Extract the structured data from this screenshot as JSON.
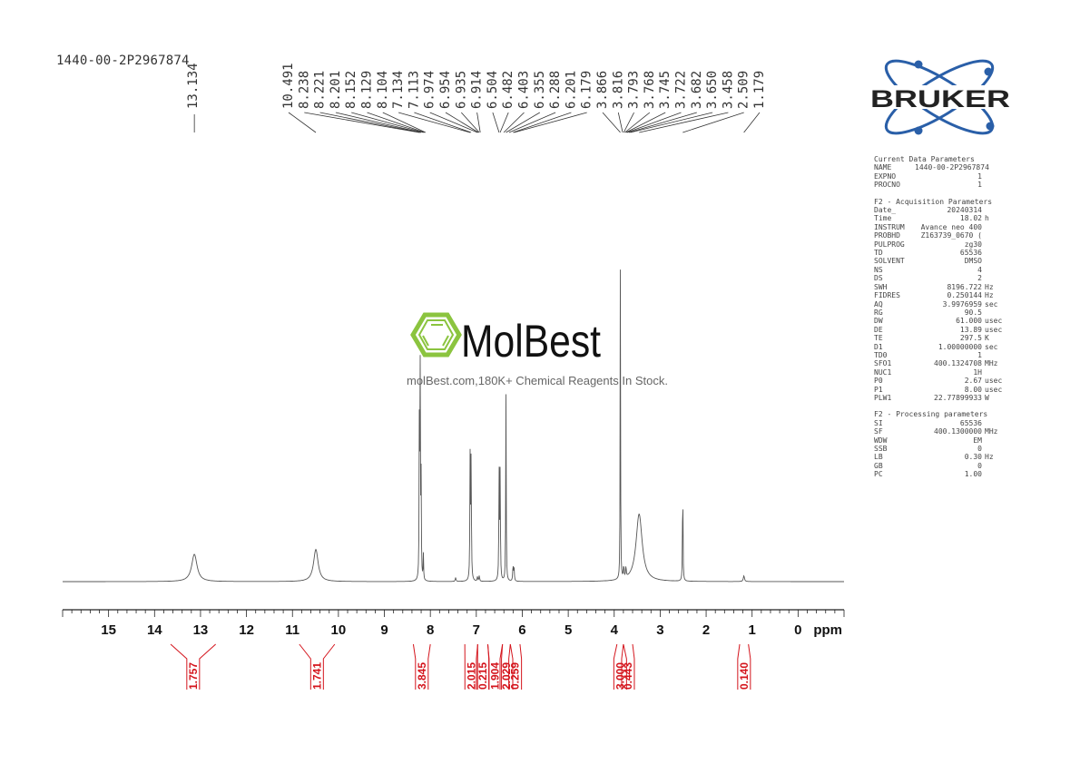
{
  "sample_id": "1440-00-2P2967874",
  "brand": {
    "name": "BRUKER",
    "colors": {
      "text": "#222222",
      "orbit": "#2a5fa8",
      "dot": "#2a5fa8"
    }
  },
  "watermark": {
    "brand": "MolBest",
    "tagline": "molBest.com,180K+ Chemical Reagents In Stock.",
    "color": "#8bc43f"
  },
  "parameters": {
    "sections": [
      {
        "title": "Current Data Parameters",
        "rows": [
          [
            "NAME",
            "1440-00-2P2967874",
            ""
          ],
          [
            "EXPNO",
            "1",
            ""
          ],
          [
            "PROCNO",
            "1",
            ""
          ]
        ]
      },
      {
        "title": "F2 - Acquisition Parameters",
        "rows": [
          [
            "Date_",
            "20240314",
            ""
          ],
          [
            "Time",
            "18.02",
            "h"
          ],
          [
            "INSTRUM",
            "Avance neo 400",
            ""
          ],
          [
            "PROBHD",
            "Z163739_0670 (",
            ""
          ],
          [
            "PULPROG",
            "zg30",
            ""
          ],
          [
            "TD",
            "65536",
            ""
          ],
          [
            "SOLVENT",
            "DMSO",
            ""
          ],
          [
            "NS",
            "4",
            ""
          ],
          [
            "DS",
            "2",
            ""
          ],
          [
            "SWH",
            "8196.722",
            "Hz"
          ],
          [
            "FIDRES",
            "0.250144",
            "Hz"
          ],
          [
            "AQ",
            "3.9976959",
            "sec"
          ],
          [
            "RG",
            "90.5",
            ""
          ],
          [
            "DW",
            "61.000",
            "usec"
          ],
          [
            "DE",
            "13.89",
            "usec"
          ],
          [
            "TE",
            "297.5",
            "K"
          ],
          [
            "D1",
            "1.00000000",
            "sec"
          ],
          [
            "TD0",
            "1",
            ""
          ],
          [
            "SFO1",
            "400.1324708",
            "MHz"
          ],
          [
            "NUC1",
            "1H",
            ""
          ],
          [
            "P0",
            "2.67",
            "usec"
          ],
          [
            "P1",
            "8.00",
            "usec"
          ],
          [
            "PLW1",
            "22.77899933",
            "W"
          ]
        ]
      },
      {
        "title": "F2 - Processing parameters",
        "rows": [
          [
            "SI",
            "65536",
            ""
          ],
          [
            "SF",
            "400.1300000",
            "MHz"
          ],
          [
            "WDW",
            "EM",
            ""
          ],
          [
            "SSB",
            "0",
            ""
          ],
          [
            "LB",
            "0.30",
            "Hz"
          ],
          [
            "GB",
            "0",
            ""
          ],
          [
            "PC",
            "1.00",
            ""
          ]
        ]
      }
    ]
  },
  "chart_data": {
    "type": "line",
    "xlabel": "ppm",
    "x_reversed": true,
    "xlim": [
      16.0,
      -1.0
    ],
    "major_ticks": [
      15,
      14,
      13,
      12,
      11,
      10,
      9,
      8,
      7,
      6,
      5,
      4,
      3,
      2,
      1,
      0
    ],
    "minor_tick_step": 0.2,
    "peak_labels": [
      "13.134",
      "10.491",
      "8.238",
      "8.221",
      "8.201",
      "8.152",
      "8.129",
      "8.104",
      "7.134",
      "7.113",
      "6.974",
      "6.954",
      "6.935",
      "6.914",
      "6.504",
      "6.482",
      "6.403",
      "6.355",
      "6.288",
      "6.201",
      "6.179",
      "3.866",
      "3.816",
      "3.793",
      "3.768",
      "3.745",
      "3.722",
      "3.682",
      "3.650",
      "3.458",
      "2.509",
      "1.179"
    ],
    "peaks": [
      {
        "ppm": 13.134,
        "height": 0.085,
        "width": 0.07
      },
      {
        "ppm": 10.491,
        "height": 0.1,
        "width": 0.06
      },
      {
        "ppm": 8.238,
        "height": 0.55,
        "width": 0.006
      },
      {
        "ppm": 8.221,
        "height": 0.62,
        "width": 0.006
      },
      {
        "ppm": 8.201,
        "height": 0.3,
        "width": 0.006
      },
      {
        "ppm": 8.152,
        "height": 0.08,
        "width": 0.006
      },
      {
        "ppm": 7.134,
        "height": 0.38,
        "width": 0.007
      },
      {
        "ppm": 7.113,
        "height": 0.38,
        "width": 0.007
      },
      {
        "ppm": 6.974,
        "height": 0.015,
        "width": 0.008
      },
      {
        "ppm": 6.935,
        "height": 0.018,
        "width": 0.008
      },
      {
        "ppm": 6.504,
        "height": 0.33,
        "width": 0.007
      },
      {
        "ppm": 6.482,
        "height": 0.33,
        "width": 0.007
      },
      {
        "ppm": 6.355,
        "height": 0.58,
        "width": 0.006
      },
      {
        "ppm": 6.201,
        "height": 0.05,
        "width": 0.008
      },
      {
        "ppm": 6.179,
        "height": 0.04,
        "width": 0.008
      },
      {
        "ppm": 7.45,
        "height": 0.012,
        "width": 0.01
      },
      {
        "ppm": 3.866,
        "height": 1.0,
        "width": 0.005
      },
      {
        "ppm": 3.793,
        "height": 0.04,
        "width": 0.008
      },
      {
        "ppm": 3.745,
        "height": 0.035,
        "width": 0.008
      },
      {
        "ppm": 3.458,
        "height": 0.21,
        "width": 0.08
      },
      {
        "ppm": 2.509,
        "height": 0.34,
        "width": 0.006
      },
      {
        "ppm": 1.179,
        "height": 0.018,
        "width": 0.015
      }
    ],
    "integrals": [
      {
        "from": 13.65,
        "to": 12.67,
        "value": "1.757"
      },
      {
        "from": 10.85,
        "to": 10.08,
        "value": "1.741"
      },
      {
        "from": 8.37,
        "to": 8.0,
        "value": "3.845"
      },
      {
        "from": 7.25,
        "to": 6.97,
        "value": "2.015"
      },
      {
        "from": 6.97,
        "to": 6.75,
        "value": "0.215"
      },
      {
        "from": 6.75,
        "to": 6.43,
        "value": "1.904"
      },
      {
        "from": 6.43,
        "to": 6.26,
        "value": "2.029"
      },
      {
        "from": 6.26,
        "to": 6.05,
        "value": "0.259"
      },
      {
        "from": 3.94,
        "to": 3.8,
        "value": "3.000"
      },
      {
        "from": 3.8,
        "to": 3.6,
        "value": "0.443"
      },
      {
        "from": 1.27,
        "to": 1.08,
        "value": "0.140"
      }
    ]
  }
}
